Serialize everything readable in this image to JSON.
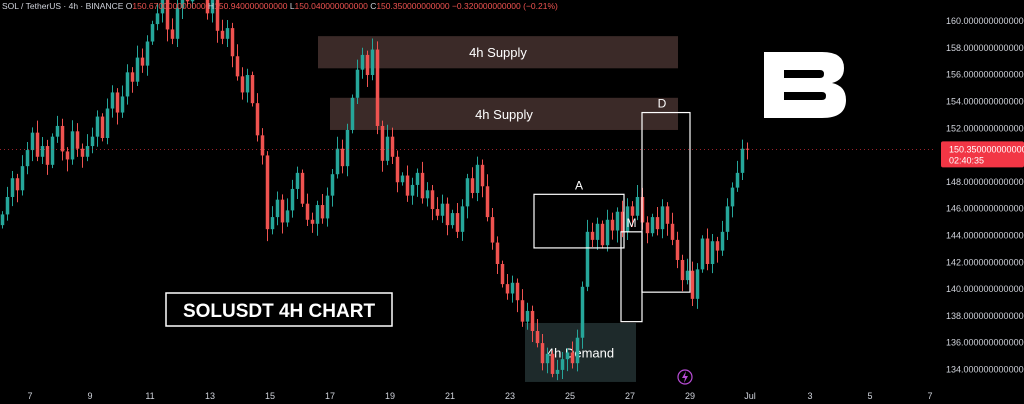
{
  "header": {
    "symbol": "SOL / TetherUS · 4h · BINANCE",
    "open_label": "O",
    "open": "150.670000000000",
    "high_label": "H",
    "high": "150.940000000000",
    "low_label": "L",
    "low": "150.040000000000",
    "close_label": "C",
    "close": "150.350000000000",
    "change": "−0.320000000000 (−0.21%)"
  },
  "price_tag": {
    "value": "150.350000000000",
    "countdown": "02:40:35"
  },
  "watermark_label": "SOLUSDT 4H CHART",
  "colors": {
    "background": "#000000",
    "up": "#26a69a",
    "down": "#ef5350",
    "supply_zone": "#3b2a28",
    "demand_zone": "#1e2a2b",
    "text": "#d1d4dc",
    "price_tag": "#f23645"
  },
  "chart_data": {
    "type": "candlestick",
    "title": "",
    "y_axis": {
      "scale": "linear",
      "ticks": [
        "160.000000000000",
        "158.000000000000",
        "156.000000000000",
        "154.000000000000",
        "152.000000000000",
        "150.000000000000",
        "148.000000000000",
        "146.000000000000",
        "144.000000000000",
        "142.000000000000",
        "140.000000000000",
        "138.000000000000",
        "136.000000000000",
        "134.000000000000"
      ],
      "tick_values": [
        160,
        158,
        156,
        154,
        152,
        150,
        148,
        146,
        144,
        142,
        140,
        138,
        136,
        134
      ],
      "range": [
        132.4,
        160.9
      ]
    },
    "x_axis": {
      "ticks": [
        "7",
        "9",
        "11",
        "13",
        "15",
        "17",
        "19",
        "21",
        "23",
        "25",
        "27",
        "29",
        "Jul",
        "3",
        "5",
        "7"
      ],
      "tick_days": [
        7,
        9,
        11,
        13,
        15,
        17,
        19,
        21,
        23,
        25,
        27,
        29,
        31,
        33,
        35,
        37
      ],
      "range": [
        6,
        37.2
      ]
    },
    "candles_day_start": 6,
    "candles_per_day": 6,
    "closes": [
      145.5,
      146.8,
      148.2,
      147.3,
      149.1,
      150.3,
      151.6,
      149.8,
      150.6,
      149.2,
      151.3,
      152.1,
      150.2,
      149.6,
      151.7,
      150.4,
      149.8,
      150.6,
      151.3,
      152.8,
      151.2,
      153.4,
      154.6,
      153.1,
      154.3,
      156.1,
      155.4,
      157.2,
      156.6,
      158.4,
      159.7,
      160.5,
      161.8,
      159.3,
      158.6,
      160.9,
      162.2,
      161.4,
      162.6,
      163.8,
      161.9,
      160.5,
      161.7,
      159.2,
      158.6,
      159.4,
      157.3,
      155.8,
      154.6,
      155.9,
      153.8,
      151.4,
      149.9,
      144.4,
      145.3,
      146.6,
      144.9,
      145.8,
      147.4,
      148.6,
      146.3,
      145.1,
      144.8,
      146.2,
      145.2,
      146.9,
      148.5,
      150.4,
      149.1,
      151.8,
      154.2,
      156.3,
      157.4,
      155.9,
      157.8,
      152.1,
      149.5,
      151.3,
      149.8,
      147.9,
      148.4,
      146.9,
      147.7,
      148.6,
      146.7,
      147.3,
      145.9,
      145.4,
      146.3,
      144.7,
      145.6,
      144.2,
      146.1,
      148.2,
      147.1,
      149.2,
      147.6,
      145.3,
      143.4,
      141.8,
      140.3,
      139.6,
      140.4,
      139.1,
      137.5,
      138.3,
      136.8,
      135.9,
      134.4,
      135.1,
      133.6,
      133.9,
      134.7,
      135.2,
      134.4,
      136.3,
      140.1,
      144.2,
      143.6,
      144.8,
      143.2,
      145.1,
      144.3,
      145.7,
      144.2,
      146.1,
      145.4,
      146.8,
      144.9,
      144.1,
      145.3,
      144.4,
      146.1,
      144.8,
      143.6,
      142.1,
      140.6,
      141.3,
      139.2,
      141.4,
      143.7,
      141.8,
      143.5,
      142.8,
      144.2,
      146.1,
      147.5,
      148.6,
      150.4,
      150.35
    ],
    "zones": [
      {
        "label": "4h Supply",
        "kind": "supply",
        "top": 158.8,
        "bottom": 156.4,
        "start_day": 16.6,
        "end_day": 28.6
      },
      {
        "label": "4h Supply",
        "kind": "supply",
        "top": 154.2,
        "bottom": 151.8,
        "start_day": 17.0,
        "end_day": 28.6
      },
      {
        "label": "4h Demand",
        "kind": "demand",
        "top": 137.4,
        "bottom": 133.0,
        "start_day": 23.5,
        "end_day": 27.2
      }
    ],
    "boxes": [
      {
        "label": "A",
        "top": 147.0,
        "bottom": 143.0,
        "start_day": 23.8,
        "end_day": 26.8,
        "label_pos": "top-center"
      },
      {
        "label": "M",
        "top": 144.2,
        "bottom": 137.5,
        "start_day": 26.7,
        "end_day": 27.4,
        "label_pos": "top-center"
      },
      {
        "label": "D",
        "top": 153.1,
        "bottom": 139.7,
        "start_day": 27.4,
        "end_day": 29.0,
        "label_pos": "top-left"
      }
    ],
    "current_price": 150.35,
    "grid": false,
    "legend": "none"
  }
}
